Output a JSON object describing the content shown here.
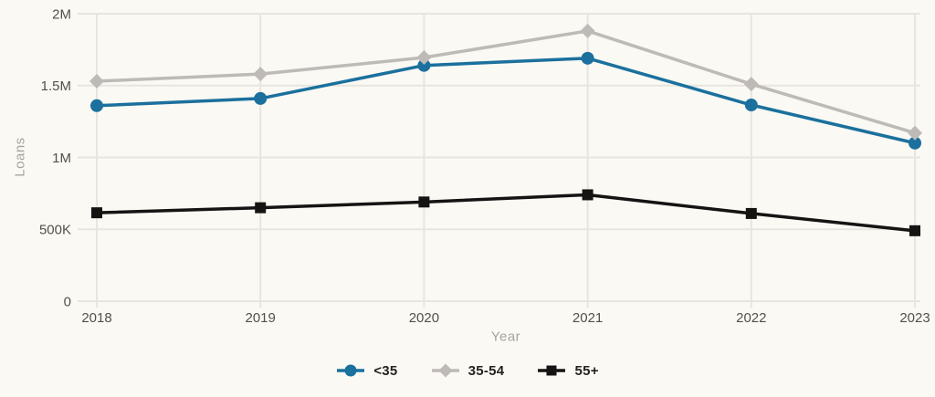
{
  "chart_data": {
    "type": "line",
    "title": "",
    "xlabel": "Year",
    "ylabel": "Loans",
    "x": [
      "2018",
      "2019",
      "2020",
      "2021",
      "2022",
      "2023"
    ],
    "series": [
      {
        "name": "<35",
        "marker": "circle",
        "color": "#1b709d",
        "values": [
          1360000,
          1410000,
          1640000,
          1690000,
          1365000,
          1100000
        ]
      },
      {
        "name": "35-54",
        "marker": "diamond",
        "color": "#bdbab7",
        "values": [
          1530000,
          1580000,
          1695000,
          1880000,
          1510000,
          1170000
        ]
      },
      {
        "name": "55+",
        "marker": "square",
        "color": "#151413",
        "values": [
          615000,
          650000,
          690000,
          740000,
          610000,
          490000
        ]
      }
    ],
    "ylim": [
      0,
      2000000
    ],
    "y_ticks": [
      {
        "value": 0,
        "label": "0"
      },
      {
        "value": 500000,
        "label": "500K"
      },
      {
        "value": 1000000,
        "label": "1M"
      },
      {
        "value": 1500000,
        "label": "1.5M"
      },
      {
        "value": 2000000,
        "label": "2M"
      }
    ],
    "grid": true,
    "legend_position": "bottom"
  },
  "colors": {
    "background": "#faf9f4",
    "gridline": "#e8e5e0",
    "tick_text": "#53504b",
    "axis_title_text": "#a6a39e",
    "legend_text": "#24221f"
  }
}
